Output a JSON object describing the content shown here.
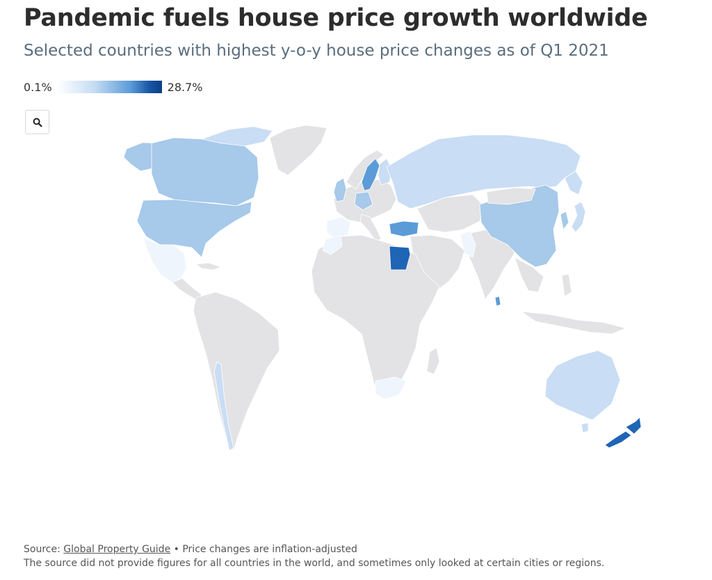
{
  "header": {
    "title": "Pandemic fuels house price growth worldwide",
    "subtitle": "Selected countries with highest y-o-y house price changes as of Q1 2021"
  },
  "legend": {
    "min_label": "0.1%",
    "max_label": "28.7%",
    "min_value": 0.1,
    "max_value": 28.7
  },
  "controls": {
    "zoom_icon": "search-icon"
  },
  "colors": {
    "no_data": "#e3e2e4",
    "border": "#ffffff",
    "scale": [
      "#eef5fd",
      "#c9ddf4",
      "#a7c9ea",
      "#5b9bd8",
      "#1f65b5"
    ]
  },
  "chart_data": {
    "type": "choropleth",
    "title": "Pandemic fuels house price growth worldwide",
    "subtitle": "Selected countries with highest y-o-y house price changes as of Q1 2021",
    "value_unit": "% y-o-y (inflation-adjusted)",
    "scale_range": [
      0.1,
      28.7
    ],
    "highlighted_countries": [
      {
        "name": "New Zealand",
        "shade": 4
      },
      {
        "name": "Egypt",
        "shade": 4
      },
      {
        "name": "Turkey",
        "shade": 3
      },
      {
        "name": "Sweden",
        "shade": 3
      },
      {
        "name": "Canada",
        "shade": 2
      },
      {
        "name": "United States",
        "shade": 2
      },
      {
        "name": "China",
        "shade": 2
      },
      {
        "name": "South Korea",
        "shade": 2
      },
      {
        "name": "Sri Lanka",
        "shade": 3
      },
      {
        "name": "Japan",
        "shade": 1
      },
      {
        "name": "Russia",
        "shade": 1
      },
      {
        "name": "Australia",
        "shade": 1
      },
      {
        "name": "Mexico",
        "shade": 0
      },
      {
        "name": "South Africa",
        "shade": 0
      }
    ]
  },
  "footer": {
    "source_prefix": "Source: ",
    "source_link": "Global Property Guide",
    "source_suffix": " • Price changes are inflation-adjusted",
    "note": "The source did not provide figures for all countries in the world, and sometimes only looked at certain cities or regions."
  }
}
